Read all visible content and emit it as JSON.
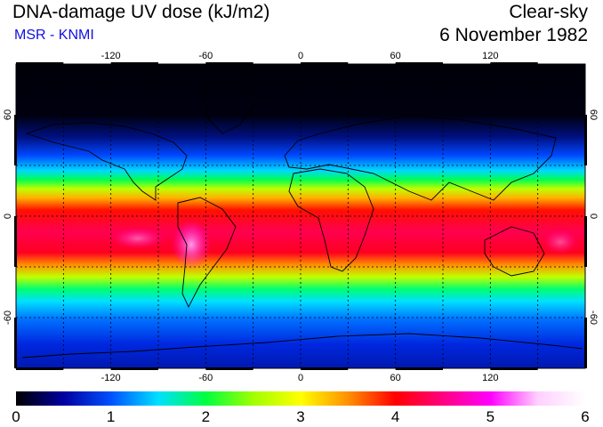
{
  "header": {
    "title": "DNA-damage UV dose (kJ/m2)",
    "source": "MSR - KNMI",
    "condition": "Clear-sky",
    "date": "6 November 1982"
  },
  "map": {
    "projection": "equirectangular",
    "lon_range": [
      -180,
      180
    ],
    "lat_range": [
      -90,
      90
    ],
    "lon_ticks": [
      {
        "value": -120,
        "label": "-120"
      },
      {
        "value": -60,
        "label": "-60"
      },
      {
        "value": 0,
        "label": "0"
      },
      {
        "value": 60,
        "label": "60"
      },
      {
        "value": 120,
        "label": "120"
      }
    ],
    "lat_ticks": [
      {
        "value": 60,
        "label": "60"
      },
      {
        "value": 0,
        "label": "0"
      },
      {
        "value": -60,
        "label": "-60"
      }
    ],
    "colors": {
      "ocean_dark": "#000010",
      "graticule": "#000000",
      "coast": "#000000"
    }
  },
  "colorbar": {
    "min": 0,
    "max": 6,
    "labels": [
      "0",
      "1",
      "2",
      "3",
      "4",
      "5",
      "6"
    ],
    "stops": [
      "#000000",
      "#0000a0",
      "#0050ff",
      "#00e0ff",
      "#00ff40",
      "#a0ff00",
      "#ffff00",
      "#ff9000",
      "#ff0000",
      "#ff0080",
      "#ff00ff",
      "#ffd0ff",
      "#ffffff"
    ]
  }
}
